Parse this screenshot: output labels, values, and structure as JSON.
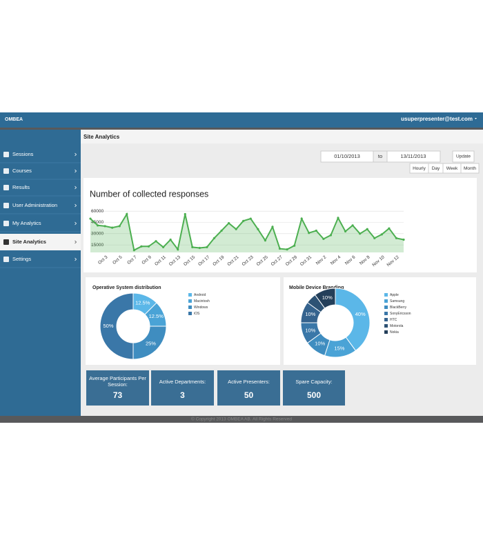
{
  "header": {
    "logo": "OMBEA",
    "user": "usuperpresenter@test.com"
  },
  "nav": {
    "items": [
      "Sessions",
      "Courses",
      "Results",
      "User Administration",
      "My Analytics",
      "Site Analytics",
      "Settings"
    ],
    "active": 5
  },
  "page_title": "Site Analytics",
  "filters": {
    "from": "01/10/2013",
    "to_label": "to",
    "to": "13/11/2013",
    "update": "Update",
    "ranges": [
      "Hourly",
      "Day",
      "Week",
      "Month"
    ]
  },
  "chart_data": [
    {
      "type": "line",
      "title": "Number of collected responses",
      "categories": [
        null,
        null,
        "Oct 3",
        null,
        "Oct 5",
        null,
        "Oct 7",
        null,
        "Oct 9",
        null,
        "Oct 11",
        null,
        "Oct 13",
        null,
        "Oct 15",
        null,
        "Oct 17",
        null,
        "Oct 19",
        null,
        "Oct 21",
        null,
        "Oct 23",
        null,
        "Oct 25",
        null,
        "Oct 27",
        null,
        "Oct 29",
        null,
        "Oct 31",
        null,
        "Nov 2",
        null,
        "Nov 4",
        null,
        "Nov 6",
        null,
        "Nov 8",
        null,
        "Nov 10",
        null,
        "Nov 12",
        null
      ],
      "values": [
        50000,
        41000,
        40000,
        38000,
        40000,
        56000,
        8000,
        13000,
        13000,
        20000,
        12000,
        22000,
        9000,
        56000,
        12000,
        11000,
        12000,
        24000,
        34000,
        44000,
        36000,
        47000,
        50000,
        36000,
        21000,
        39000,
        10000,
        9000,
        14000,
        50000,
        31000,
        34000,
        23000,
        28000,
        51000,
        33000,
        41000,
        30000,
        36000,
        24000,
        29000,
        37000,
        24000,
        22000
      ],
      "color": "#4caf50",
      "ylim": [
        5000,
        62000
      ],
      "yticks": [
        15000,
        30000,
        45000,
        60000
      ],
      "grid": true
    },
    {
      "type": "pie",
      "title": "Operative System distribution",
      "categories": [
        "Android",
        "Macintosh",
        "Windows",
        "iOS"
      ],
      "values": [
        12.5,
        12.5,
        25,
        50
      ],
      "value_labels": [
        "12.5%",
        "12.5%",
        "25%",
        "50%"
      ],
      "colors": [
        "#5bb7e8",
        "#4aa3d6",
        "#3f8dc0",
        "#3a77a8"
      ]
    },
    {
      "type": "pie",
      "title": "Mobile Device Branding",
      "categories": [
        "Apple",
        "Samsung",
        "BlackBerry",
        "SonyEricsson",
        "HTC",
        "Motorola",
        "Nokia"
      ],
      "values": [
        40,
        15,
        10,
        10,
        10,
        5,
        10
      ],
      "value_labels": [
        "40%",
        "15%",
        "10%",
        "10%",
        "10%",
        null,
        "10%"
      ],
      "colors": [
        "#5bb7e8",
        "#4aa3d6",
        "#3f8dc0",
        "#3a77a8",
        "#35638e",
        "#2d5274",
        "#243f5a"
      ]
    }
  ],
  "stats": [
    {
      "label": "Average Participants Per Session:",
      "value": 73
    },
    {
      "label": "Active Departments:",
      "value": 3
    },
    {
      "label": "Active Presenters:",
      "value": 50
    },
    {
      "label": "Spare Capacity:",
      "value": 500
    }
  ],
  "footer": "© Copyright 2013 OMBEA AB. All Rights Reserved"
}
